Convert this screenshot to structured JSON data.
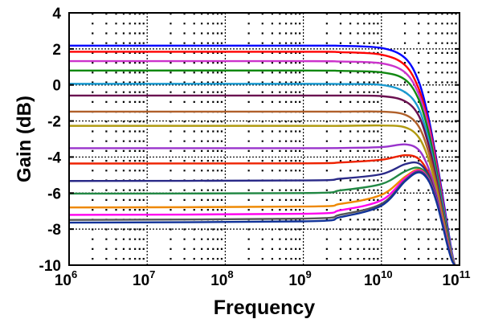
{
  "chart_data": {
    "type": "line",
    "title": "",
    "xlabel": "Frequency",
    "ylabel": "Gain (dB)",
    "xscale": "log",
    "xlim": [
      1000000.0,
      100000000000.0
    ],
    "ylim": [
      -10,
      4
    ],
    "grid": true,
    "xticks": [
      {
        "base": "10",
        "exp": "6"
      },
      {
        "base": "10",
        "exp": "7"
      },
      {
        "base": "10",
        "exp": "8"
      },
      {
        "base": "10",
        "exp": "9"
      },
      {
        "base": "10",
        "exp": "10"
      },
      {
        "base": "10",
        "exp": "11"
      }
    ],
    "yticks": [
      "4",
      "2",
      "0",
      "-2",
      "-4",
      "-6",
      "-8",
      "-10"
    ],
    "ytick_values": [
      4,
      2,
      0,
      -2,
      -4,
      -6,
      -8,
      -10
    ],
    "x": [
      1000000.0,
      1000000000.0,
      3000000000.0,
      10000000000.0,
      20000000000.0,
      30000000000.0,
      40000000000.0,
      50000000000.0,
      60000000000.0,
      70000000000.0,
      80000000000.0,
      87000000000.0
    ],
    "series": [
      {
        "color": "#0000ff",
        "values": [
          2.18,
          2.18,
          2.17,
          2.05,
          1.5,
          0.2,
          -1.8,
          -4,
          -6,
          -7.8,
          -9.3,
          -10
        ]
      },
      {
        "color": "#ff0000",
        "values": [
          1.84,
          1.84,
          1.82,
          1.68,
          1.1,
          -0.2,
          -2.1,
          -4.2,
          -6.2,
          -8,
          -9.4,
          -10
        ]
      },
      {
        "color": "#cc33cc",
        "values": [
          1.32,
          1.32,
          1.3,
          1.2,
          0.7,
          -0.5,
          -2.3,
          -4.4,
          -6.3,
          -8,
          -9.4,
          -10
        ]
      },
      {
        "color": "#118811",
        "values": [
          0.8,
          0.8,
          0.78,
          0.7,
          0.3,
          -0.8,
          -2.6,
          -4.6,
          -6.5,
          -8.1,
          -9.5,
          -10
        ]
      },
      {
        "color": "#1a9ad0",
        "values": [
          0.06,
          0.06,
          0.05,
          0,
          -0.4,
          -1.3,
          -3,
          -4.9,
          -6.7,
          -8.3,
          -9.5,
          -10
        ]
      },
      {
        "color": "#6a1050",
        "values": [
          -0.59,
          -0.59,
          -0.59,
          -0.62,
          -0.9,
          -1.7,
          -3.3,
          -5.1,
          -6.9,
          -8.4,
          -9.6,
          -10
        ]
      },
      {
        "color": "#b0602a",
        "values": [
          -1.48,
          -1.48,
          -1.48,
          -1.48,
          -1.65,
          -2.3,
          -3.7,
          -5.4,
          -7.1,
          -8.5,
          -9.6,
          -10
        ]
      },
      {
        "color": "#b09a10",
        "values": [
          -2.27,
          -2.27,
          -2.27,
          -2.25,
          -2.35,
          -2.9,
          -4.1,
          -5.7,
          -7.3,
          -8.6,
          -9.6,
          -10
        ]
      },
      {
        "color": "#9933cc",
        "values": [
          -3.51,
          -3.51,
          -3.5,
          -3.45,
          -3.3,
          -3.6,
          -4.6,
          -6,
          -7.5,
          -8.7,
          -9.7,
          -10
        ]
      },
      {
        "color": "#ee2200",
        "values": [
          -4.36,
          -4.35,
          -4.3,
          -4.15,
          -3.9,
          -4.1,
          -4.9,
          -6.2,
          -7.6,
          -8.8,
          -9.7,
          -10
        ]
      },
      {
        "color": "#2a2a88",
        "values": [
          -5.33,
          -5.3,
          -5.2,
          -4.95,
          -4.4,
          -4.35,
          -5,
          -6.2,
          -7.6,
          -8.8,
          -9.7,
          -10
        ]
      },
      {
        "color": "#228844",
        "values": [
          -6.03,
          -6,
          -5.85,
          -5.5,
          -4.8,
          -4.6,
          -5.1,
          -6.3,
          -7.6,
          -8.8,
          -9.7,
          -10
        ]
      },
      {
        "color": "#ee8800",
        "values": [
          -6.8,
          -6.75,
          -6.6,
          -6.1,
          -5.1,
          -4.7,
          -5.2,
          -6.3,
          -7.6,
          -8.8,
          -9.7,
          -10
        ]
      },
      {
        "color": "#ff00ee",
        "values": [
          -7.21,
          -7.15,
          -6.95,
          -6.4,
          -5.2,
          -4.75,
          -5.2,
          -6.3,
          -7.6,
          -8.8,
          -9.7,
          -10
        ]
      },
      {
        "color": "#555555",
        "values": [
          -7.49,
          -7.42,
          -7.2,
          -6.6,
          -5.3,
          -4.8,
          -5.25,
          -6.35,
          -7.65,
          -8.85,
          -9.7,
          -10
        ]
      },
      {
        "color": "#113399",
        "values": [
          -7.64,
          -7.57,
          -7.33,
          -6.7,
          -5.35,
          -4.85,
          -5.3,
          -6.4,
          -7.7,
          -8.9,
          -9.75,
          -10
        ]
      }
    ]
  }
}
